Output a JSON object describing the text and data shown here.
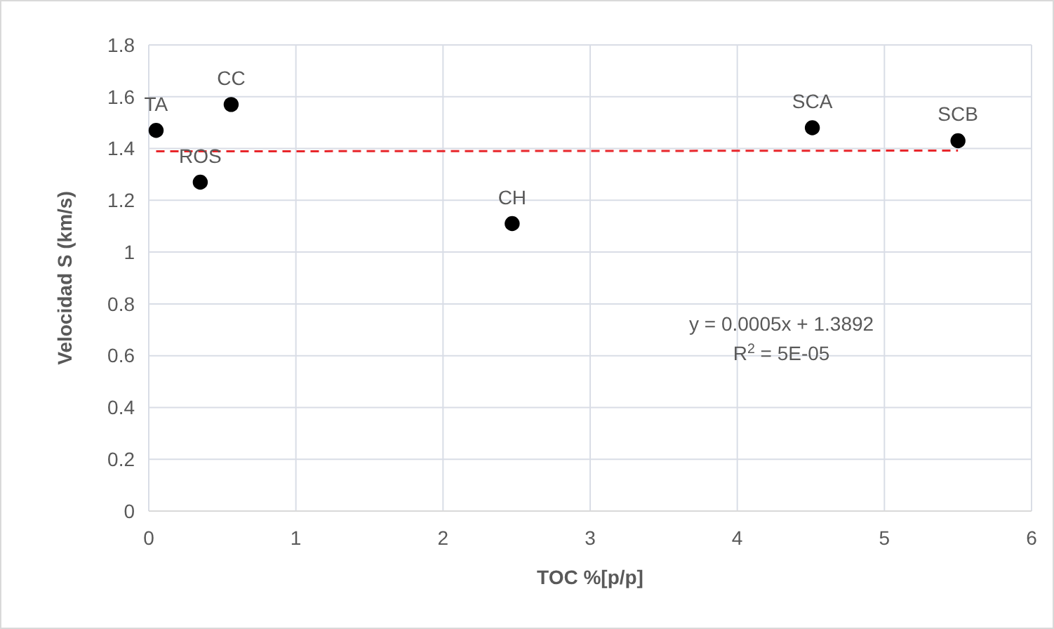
{
  "chart_data": {
    "type": "scatter",
    "xlabel": "TOC %[p/p]",
    "ylabel": "Velocidad S (km/s)",
    "xlim": [
      0,
      6
    ],
    "xticks": [
      0,
      1,
      2,
      3,
      4,
      5,
      6
    ],
    "ylim": [
      0,
      1.8
    ],
    "yticks": [
      0,
      {
        "value": 0.2,
        "label": "0.2"
      },
      {
        "value": 0.4,
        "label": "0.4"
      },
      {
        "value": 0.6,
        "label": "0.6"
      },
      {
        "value": 0.8,
        "label": "0.8"
      },
      1,
      {
        "value": 1.2,
        "label": "1.2"
      },
      {
        "value": 1.4,
        "label": "1.4"
      },
      {
        "value": 1.6,
        "label": "1.6"
      },
      {
        "value": 1.8,
        "label": "1.8"
      }
    ],
    "grid": true,
    "marker": "circle",
    "series": [
      {
        "color": "#000000",
        "x": [
          0.05,
          0.35,
          0.56,
          2.47,
          4.51,
          5.5
        ],
        "values": [
          1.47,
          1.27,
          1.57,
          1.11,
          1.48,
          1.43
        ]
      },
      {
        "type": "line",
        "marker": "none",
        "color": "#e8262b",
        "line_style": "dashed",
        "x": [
          0.05,
          5.5
        ],
        "values": [
          1.389,
          1.392
        ]
      }
    ],
    "annotations": [
      {
        "text": "TA",
        "x": 0.05,
        "y": 1.47
      },
      {
        "text": "ROS",
        "x": 0.35,
        "y": 1.27
      },
      {
        "text": "CC",
        "x": 0.56,
        "y": 1.57
      },
      {
        "text": "CH",
        "x": 2.47,
        "y": 1.11
      },
      {
        "text": "SCA",
        "x": 4.51,
        "y": 1.48
      },
      {
        "text": "SCB",
        "x": 5.5,
        "y": 1.43
      },
      "y = 0.0005x + 1.3892",
      "R$^{2}$ = 5E-05"
    ]
  }
}
